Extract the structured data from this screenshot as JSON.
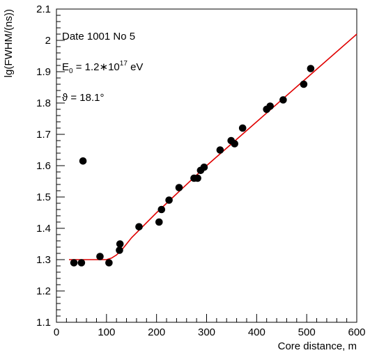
{
  "chart_data": {
    "type": "scatter",
    "xlabel": "Core distance, m",
    "ylabel": "lg(FWHM/(ns))",
    "xlim": [
      0,
      600
    ],
    "ylim": [
      1.1,
      2.1
    ],
    "x_ticks": [
      0,
      100,
      200,
      300,
      400,
      500,
      600
    ],
    "y_ticks": [
      1.1,
      1.2,
      1.3,
      1.4,
      1.5,
      1.6,
      1.7,
      1.8,
      1.9,
      2.0,
      2.1
    ],
    "x_tick_labels": [
      "0",
      "100",
      "200",
      "300",
      "400",
      "500",
      "600"
    ],
    "y_tick_labels": [
      "1.1",
      "1.2",
      "1.3",
      "1.4",
      "1.5",
      "1.6",
      "1.7",
      "1.8",
      "1.9",
      "2",
      "2.1"
    ],
    "grid": false,
    "annotations": {
      "line1": "Date 1001 No 5",
      "energy_sym": "E",
      "energy_sub": "0",
      "energy_eq": " = 1.2∗10",
      "energy_exp": "17",
      "energy_unit": " eV",
      "angle": "ϑ = 18.1°"
    },
    "series": [
      {
        "type": "scatter",
        "color": "#000000",
        "points": [
          [
            35,
            1.29
          ],
          [
            50,
            1.29
          ],
          [
            53,
            1.615
          ],
          [
            87,
            1.31
          ],
          [
            105,
            1.29
          ],
          [
            126,
            1.33
          ],
          [
            127,
            1.35
          ],
          [
            165,
            1.405
          ],
          [
            205,
            1.42
          ],
          [
            210,
            1.46
          ],
          [
            225,
            1.49
          ],
          [
            245,
            1.53
          ],
          [
            275,
            1.56
          ],
          [
            282,
            1.56
          ],
          [
            288,
            1.585
          ],
          [
            295,
            1.595
          ],
          [
            327,
            1.65
          ],
          [
            349,
            1.68
          ],
          [
            356,
            1.67
          ],
          [
            372,
            1.72
          ],
          [
            420,
            1.78
          ],
          [
            427,
            1.79
          ],
          [
            453,
            1.81
          ],
          [
            494,
            1.86
          ],
          [
            508,
            1.91
          ]
        ]
      },
      {
        "type": "line",
        "color": "#e00000",
        "points": [
          [
            25,
            1.3
          ],
          [
            40,
            1.3
          ],
          [
            60,
            1.3
          ],
          [
            80,
            1.3
          ],
          [
            100,
            1.3
          ],
          [
            110,
            1.305
          ],
          [
            120,
            1.315
          ],
          [
            130,
            1.33
          ],
          [
            150,
            1.37
          ],
          [
            200,
            1.45
          ],
          [
            300,
            1.6
          ],
          [
            400,
            1.74
          ],
          [
            500,
            1.88
          ],
          [
            600,
            2.02
          ]
        ]
      }
    ]
  }
}
